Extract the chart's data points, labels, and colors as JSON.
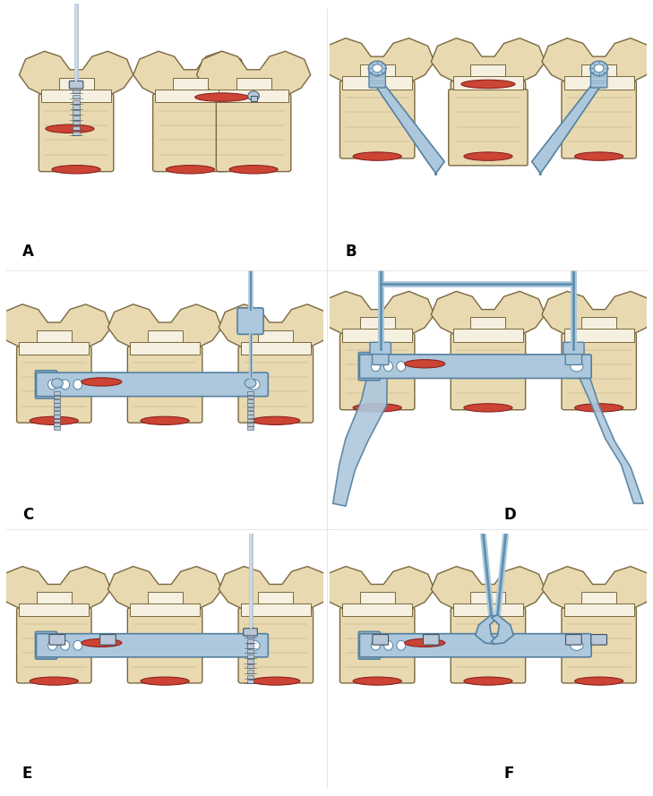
{
  "background_color": "#ffffff",
  "panel_labels": [
    "A",
    "B",
    "C",
    "D",
    "E",
    "F"
  ],
  "panel_label_fontsize": 12,
  "panel_label_color": "#000000",
  "bone_fill": "#e8d9b0",
  "bone_edge": "#7a6840",
  "bone_white": "#f5f0e0",
  "disc_fill": "#cc4433",
  "disc_edge": "#8b2222",
  "implant_fill": "#adc8dc",
  "implant_edge": "#5580a0",
  "implant_dark": "#6090b0",
  "screw_fill": "#b8c8d8",
  "screw_edge": "#405060",
  "tool_fill": "#adc8dc",
  "tool_edge": "#5580a0",
  "fig_width": 7.29,
  "fig_height": 8.89,
  "dpi": 100
}
